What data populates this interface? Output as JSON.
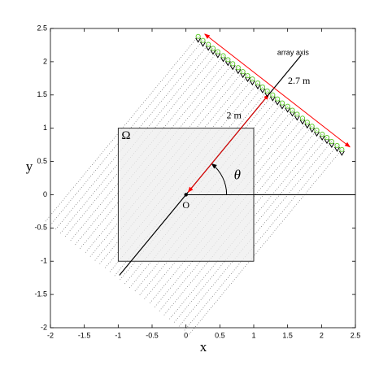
{
  "chart_data": {
    "type": "scatter",
    "xlabel": "x",
    "ylabel": "y",
    "xlim": [
      -2,
      2.5
    ],
    "ylim": [
      -2,
      2.5
    ],
    "xticks": [
      -2,
      -1.5,
      -1,
      -0.5,
      0,
      0.5,
      1,
      1.5,
      2,
      2.5
    ],
    "yticks": [
      -2,
      -1.5,
      -1,
      -0.5,
      0,
      0.5,
      1,
      1.5,
      2,
      2.5
    ],
    "region": {
      "label": "Ω",
      "x": [
        -1,
        1
      ],
      "y": [
        -1,
        1
      ],
      "color": "#eeeeee"
    },
    "origin": {
      "label": "O",
      "x": 0,
      "y": 0
    },
    "angle_label": "θ",
    "axis_label": "array axis",
    "distance_label": "2 m",
    "length_label": "2.7 m",
    "annotation_color": "#ff0000",
    "series": [
      {
        "color": "#66cc33",
        "x": [
          0.18,
          0.25,
          0.33,
          0.4,
          0.47,
          0.55,
          0.62,
          0.69,
          0.77,
          0.84,
          0.91,
          0.98,
          1.06,
          1.13,
          1.2,
          1.28,
          1.35,
          1.42,
          1.5,
          1.57,
          1.64,
          1.72,
          1.79,
          1.86,
          1.93,
          2.01,
          2.08,
          2.15,
          2.23,
          2.3
        ],
        "values": [
          2.38,
          2.32,
          2.26,
          2.2,
          2.15,
          2.09,
          2.03,
          1.97,
          1.91,
          1.85,
          1.79,
          1.74,
          1.68,
          1.62,
          1.56,
          1.5,
          1.44,
          1.38,
          1.33,
          1.27,
          1.21,
          1.15,
          1.09,
          1.03,
          0.97,
          0.91,
          0.86,
          0.8,
          0.74,
          0.68
        ]
      }
    ]
  }
}
